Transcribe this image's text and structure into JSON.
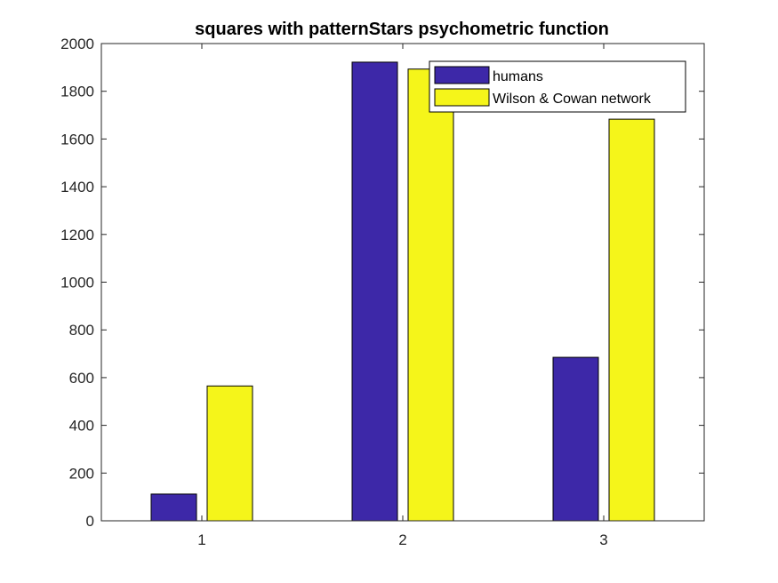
{
  "chart_data": {
    "type": "bar",
    "title": "squares with patternStars psychometric function",
    "xlabel": "",
    "ylabel": "",
    "categories": [
      "1",
      "2",
      "3"
    ],
    "ylim": [
      0,
      2000
    ],
    "yticks": [
      "0",
      "200",
      "400",
      "600",
      "800",
      "1000",
      "1200",
      "1400",
      "1600",
      "1800",
      "2000"
    ],
    "grid": false,
    "legend_position": "top-right",
    "series": [
      {
        "name": "humans",
        "color": "#3d28a8",
        "values": [
          112,
          1922,
          685
        ]
      },
      {
        "name": "Wilson & Cowan network",
        "color": "#f5f51a",
        "values": [
          565,
          1893,
          1683
        ]
      }
    ]
  }
}
